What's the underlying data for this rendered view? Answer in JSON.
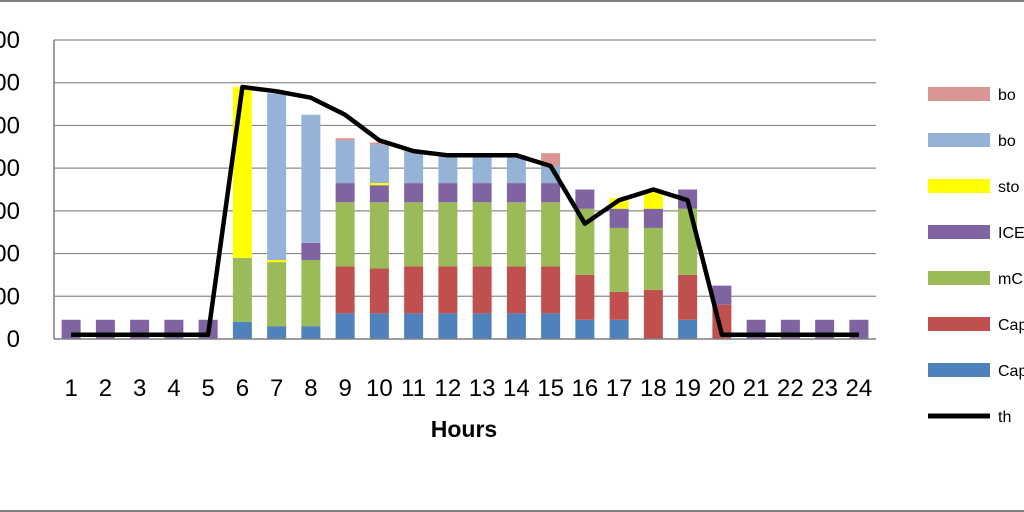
{
  "chart_data": {
    "type": "bar",
    "stacked": true,
    "x": [
      "1",
      "2",
      "3",
      "4",
      "5",
      "6",
      "7",
      "8",
      "9",
      "10",
      "11",
      "12",
      "13",
      "14",
      "15",
      "16",
      "17",
      "18",
      "19",
      "20",
      "21",
      "22",
      "23",
      "24"
    ],
    "xlabel": "Hours",
    "ylabel": "",
    "ylim": [
      0,
      7
    ],
    "y_tick_labels": [
      "0",
      "00",
      "00",
      "00",
      "00",
      "00",
      "00",
      "00"
    ],
    "grid": true,
    "legend_position": "right",
    "series": [
      {
        "name": "Cap",
        "color": "#4f81bd",
        "values": [
          0,
          0,
          0,
          0,
          0,
          0.4,
          0.3,
          0.3,
          0.6,
          0.6,
          0.6,
          0.6,
          0.6,
          0.6,
          0.6,
          0.45,
          0.45,
          0,
          0.45,
          0,
          0,
          0,
          0,
          0
        ]
      },
      {
        "name": "Cap",
        "color": "#c0504d",
        "values": [
          0,
          0,
          0,
          0,
          0,
          0,
          0,
          0,
          1.1,
          1.05,
          1.1,
          1.1,
          1.1,
          1.1,
          1.1,
          1.05,
          0.65,
          1.15,
          1.05,
          0.8,
          0,
          0,
          0,
          0
        ]
      },
      {
        "name": "mC",
        "color": "#9bbb59",
        "values": [
          0,
          0,
          0,
          0,
          0,
          1.5,
          1.5,
          1.55,
          1.5,
          1.55,
          1.5,
          1.5,
          1.5,
          1.5,
          1.5,
          1.55,
          1.5,
          1.45,
          1.55,
          0,
          0,
          0,
          0,
          0
        ]
      },
      {
        "name": "ICE",
        "color": "#8064a2",
        "values": [
          0.45,
          0.45,
          0.45,
          0.45,
          0.45,
          0,
          0,
          0.4,
          0.45,
          0.4,
          0.45,
          0.45,
          0.45,
          0.45,
          0.45,
          0.45,
          0.45,
          0.45,
          0.45,
          0.45,
          0.45,
          0.45,
          0.45,
          0.45
        ]
      },
      {
        "name": "sto",
        "color": "#ffff00",
        "values": [
          0,
          0,
          0,
          0,
          0,
          4.0,
          0.05,
          0,
          0,
          0.05,
          0,
          0,
          0,
          0,
          0,
          0,
          0.25,
          0.4,
          0,
          0,
          0,
          0,
          0,
          0
        ]
      },
      {
        "name": "bo",
        "color": "#95b3d7",
        "values": [
          0,
          0,
          0,
          0,
          0,
          0,
          3.9,
          3.0,
          1.0,
          0.9,
          0.75,
          0.65,
          0.65,
          0.65,
          0.4,
          0,
          0,
          0,
          0,
          0,
          0,
          0,
          0,
          0
        ]
      },
      {
        "name": "bo",
        "color": "#d99694",
        "values": [
          0,
          0,
          0,
          0,
          0,
          0,
          0,
          0,
          0.05,
          0.05,
          0,
          0,
          0,
          0,
          0.3,
          0,
          0,
          0,
          0,
          0,
          0,
          0,
          0,
          0
        ]
      }
    ],
    "line_series": {
      "name": "th",
      "color": "#000000",
      "values": [
        0.1,
        0.1,
        0.1,
        0.1,
        0.1,
        5.9,
        5.8,
        5.65,
        5.25,
        4.65,
        4.4,
        4.3,
        4.3,
        4.3,
        4.05,
        2.7,
        3.25,
        3.5,
        3.25,
        0.1,
        0.1,
        0.1,
        0.1,
        0.1
      ]
    },
    "legend_order": [
      6,
      5,
      4,
      3,
      2,
      1,
      0,
      "line"
    ]
  }
}
